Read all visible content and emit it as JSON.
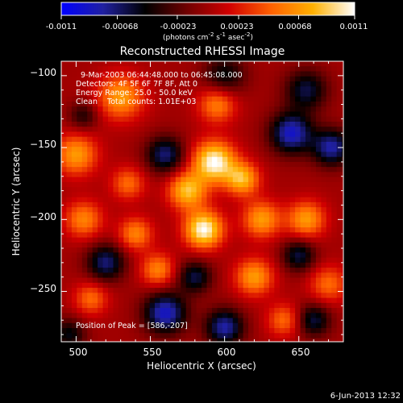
{
  "colorbar": {
    "tick_labels": [
      "-0.0011",
      "-0.00068",
      "-0.00023",
      "0.00023",
      "0.00068",
      "0.0011"
    ],
    "tick_values": [
      -0.0011,
      -0.00068,
      -0.00023,
      0.00023,
      0.00068,
      0.0011
    ],
    "range": [
      -0.0011,
      0.0011
    ],
    "units_main": "(photons cm",
    "units_sup1": "-2",
    "units_mid": " s",
    "units_sup2": "-1",
    "units_mid2": " asec",
    "units_sup3": "-2",
    "units_end": ")",
    "colors": [
      "#0000ff",
      "#2020a0",
      "#000000",
      "#700000",
      "#d00000",
      "#ff6000",
      "#ffb000",
      "#ffffff"
    ]
  },
  "chart_data": {
    "type": "heatmap",
    "title": "Reconstructed RHESSI Image",
    "xlabel": "Heliocentric X (arcsec)",
    "ylabel": "Heliocentric Y (arcsec)",
    "xlim": [
      490,
      680
    ],
    "ylim": [
      -285,
      -90
    ],
    "xticks": [
      500,
      550,
      600,
      650
    ],
    "xtick_labels": [
      "500",
      "550",
      "600",
      "650"
    ],
    "yticks": [
      -100,
      -150,
      -200,
      -250
    ],
    "ytick_labels": [
      "−100",
      "−150",
      "−200",
      "−250"
    ],
    "annotations": [
      "9-Mar-2003 06:44:48.000 to 06:45:08.000",
      "Detectors: 4F 5F 6F 7F 8F, Att 0",
      "Energy Range: 25.0 - 50.0 keV",
      "Clean    Total counts: 1.01E+03"
    ],
    "peak_label": "Position of Peak = [586,-207]",
    "peak": [
      586,
      -207
    ],
    "sources": [
      {
        "x": 586,
        "y": -207,
        "v": 0.0011,
        "s": 9
      },
      {
        "x": 593,
        "y": -160,
        "v": 0.0011,
        "s": 10
      },
      {
        "x": 575,
        "y": -180,
        "v": 0.00085,
        "s": 9
      },
      {
        "x": 612,
        "y": -172,
        "v": 0.0008,
        "s": 8
      },
      {
        "x": 530,
        "y": -115,
        "v": 0.0007,
        "s": 11
      },
      {
        "x": 595,
        "y": -120,
        "v": 0.0006,
        "s": 9
      },
      {
        "x": 625,
        "y": -200,
        "v": 0.0007,
        "s": 9
      },
      {
        "x": 500,
        "y": -155,
        "v": 0.0007,
        "s": 10
      },
      {
        "x": 505,
        "y": -200,
        "v": 0.0006,
        "s": 9
      },
      {
        "x": 540,
        "y": -210,
        "v": 0.0006,
        "s": 8
      },
      {
        "x": 555,
        "y": -235,
        "v": 0.0006,
        "s": 8
      },
      {
        "x": 620,
        "y": -240,
        "v": 0.0007,
        "s": 9
      },
      {
        "x": 655,
        "y": -200,
        "v": 0.0007,
        "s": 9
      },
      {
        "x": 670,
        "y": -245,
        "v": 0.0005,
        "s": 9
      },
      {
        "x": 510,
        "y": -255,
        "v": 0.0005,
        "s": 8
      },
      {
        "x": 640,
        "y": -270,
        "v": 0.0005,
        "s": 8
      },
      {
        "x": 535,
        "y": -175,
        "v": 0.0005,
        "s": 8
      },
      {
        "x": 560,
        "y": -155,
        "v": -0.0007,
        "s": 9
      },
      {
        "x": 645,
        "y": -140,
        "v": -0.0009,
        "s": 10
      },
      {
        "x": 672,
        "y": -150,
        "v": -0.0008,
        "s": 9
      },
      {
        "x": 655,
        "y": -110,
        "v": -0.0006,
        "s": 10
      },
      {
        "x": 560,
        "y": -265,
        "v": -0.0009,
        "s": 10
      },
      {
        "x": 600,
        "y": -275,
        "v": -0.0008,
        "s": 9
      },
      {
        "x": 660,
        "y": -270,
        "v": -0.0006,
        "s": 8
      },
      {
        "x": 520,
        "y": -230,
        "v": -0.0007,
        "s": 9
      },
      {
        "x": 580,
        "y": -240,
        "v": -0.0006,
        "s": 8
      },
      {
        "x": 600,
        "y": -100,
        "v": -0.0005,
        "s": 10
      },
      {
        "x": 650,
        "y": -225,
        "v": -0.0006,
        "s": 8
      },
      {
        "x": 495,
        "y": -280,
        "v": -0.0005,
        "s": 8
      },
      {
        "x": 505,
        "y": -128,
        "v": -0.0004,
        "s": 7
      }
    ]
  },
  "footer": {
    "date": "6-Jun-2013 12:32"
  }
}
